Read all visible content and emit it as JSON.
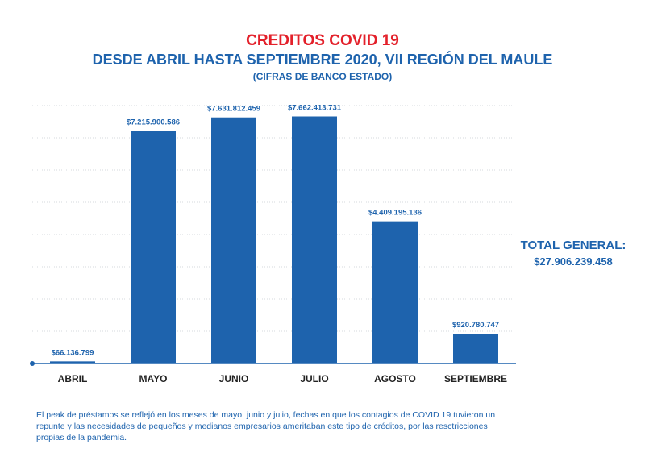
{
  "title": "CREDITOS COVID 19",
  "subtitle": "DESDE ABRIL HASTA SEPTIEMBRE 2020, VII REGIÓN DEL MAULE",
  "source_note": "(CIFRAS DE BANCO ESTADO)",
  "colors": {
    "bar": "#1e63ad",
    "title": "#e3202a",
    "text": "#1e63ad",
    "grid": "#c8ccd2",
    "axis": "#1e63ad"
  },
  "total": {
    "label": "TOTAL GENERAL:",
    "value": "$27.906.239.458"
  },
  "footnote": "El peak de préstamos se reflejó en los meses de mayo, junio y julio, fechas en que los contagios de COVID 19 tuvieron un repunte y las necesidades de pequeños y medianos empresarios ameritaban este tipo de créditos, por las resctricciones propias de la pandemia.",
  "chart_data": {
    "type": "bar",
    "title": "CREDITOS COVID 19",
    "xlabel": "",
    "ylabel": "",
    "ylim": [
      0,
      8000000000
    ],
    "grid": true,
    "categories": [
      "ABRIL",
      "MAYO",
      "JUNIO",
      "JULIO",
      "AGOSTO",
      "SEPTIEMBRE"
    ],
    "values": [
      66136799,
      7215900586,
      7631812459,
      7662413731,
      4409195136,
      920780747
    ],
    "value_labels": [
      "$66.136.799",
      "$7.215.900.586",
      "$7.631.812.459",
      "$7.662.413.731",
      "$4.409.195.136",
      "$920.780.747"
    ]
  }
}
